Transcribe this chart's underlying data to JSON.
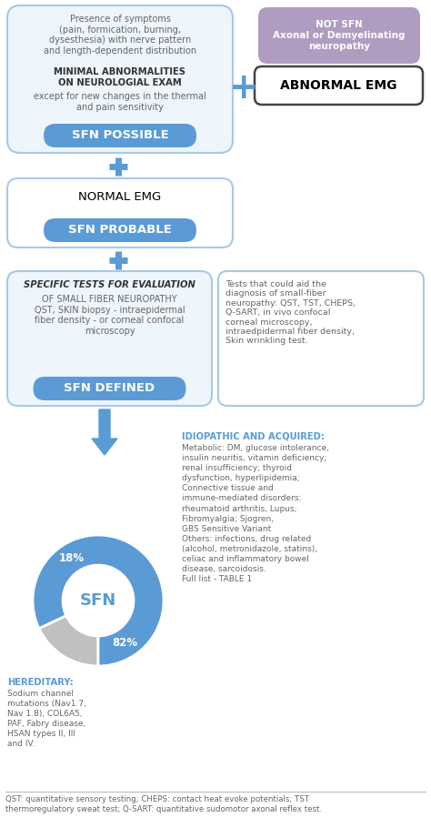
{
  "bg_color": "#ffffff",
  "blue_btn": "#5b9bd5",
  "box_border": "#a8c8e8",
  "box_bg": "#eef5fb",
  "purple_bg": "#b09cc0",
  "dark_text": "#333333",
  "gray_text": "#666666",
  "teal_text": "#5b9bd5",
  "plus_color": "#5b9bd5",
  "arrow_color": "#5b9bd5",
  "pie_blue": "#5b9bd5",
  "pie_gray": "#c0c0c0",
  "box1_text_top": "Presence of symptoms\n(pain, formication, burning,\ndysesthesia) with nerve pattern\nand length-dependent distribution",
  "box1_text_mid_bold": "MINIMAL ABNORMALITIES\nON NEUROLOGIAL EXAM",
  "box1_text_bot": "except for new changes in the thermal\nand pain sensitivity",
  "btn1_text": "SFN POSSIBLE",
  "notsfn_top": "NOT SFN\nAxonal or Demyelinating\nneuropathy",
  "abnormal_emg": "ABNORMAL EMG",
  "normal_emg": "NORMAL EMG",
  "btn2_text": "SFN PROBABLE",
  "box3_italic_bold": "SPECIFIC TESTS FOR EVALUATION",
  "box3_text": "OF SMALL FIBER NEUROPATHY\nQST, SKIN biopsy - intraepidermal\nfiber density - or corneal confocal\nmicroscopy",
  "btn3_text": "SFN DEFINED",
  "box3_side_text": "Tests that could aid the\ndiagnosis of small-fiber\nneuropathy: QST, TST, CHEPS,\nQ-SART, in vivo confocal\ncorneal microscopy,\nintraedpidermal fiber density,\nSkin wrinkling test.",
  "idiopathic_title": "IDIOPATHIC AND ACQUIRED:",
  "idiopathic_text": "Metabolic: DM, glucose intolerance,\ninsulin neuritis, vitamin deficiency;\nrenal insufficiency; thyroid\ndysfunction, hyperlipidemia;\nConnective tissue and\nimmune-mediated disorders:\nrheumatoid arthritis, Lupus,\nFibromyalgia; Sjogren,\nGBS Sensitive Variant\nOthers: infections, drug related\n(alcohol, metronidazole, statins),\nceliac and inflammatory bowel\ndisease, sarcoidosis.\nFull list - TABLE 1",
  "hereditary_title": "HEREDITARY:",
  "hereditary_text": "Sodium channel\nmutations (Nav1.7,\nNav 1.8), COL6A5,\nPAF, Fabry disease,\nHSAN types II, III\nand IV.",
  "pie_pct_blue": "82%",
  "pie_pct_gray": "18%",
  "pie_label_center": "SFN",
  "footnote": "QST: quantitative sensory testing; CHEPS: contact heat evoke potentials; TST\nthermoregulatory sweat test; Q-SART: quantitative sudomotor axonal reflex test."
}
